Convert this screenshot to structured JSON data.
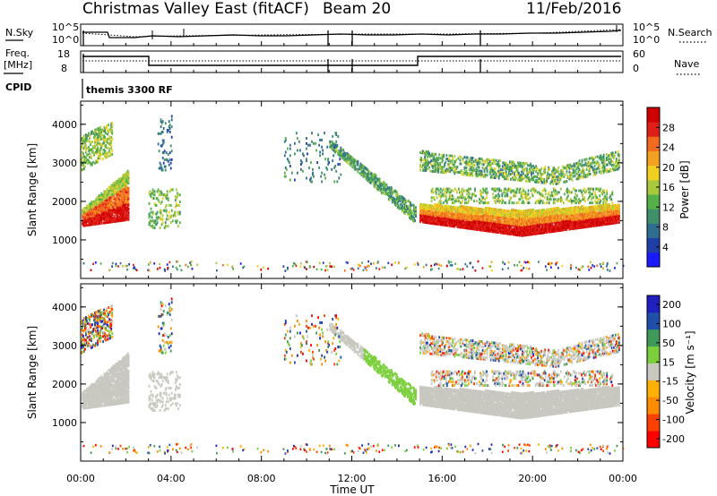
{
  "header": {
    "title": "Christmas Valley East (fitACF)",
    "beam": "Beam 20",
    "date": "11/Feb/2016"
  },
  "side_labels": {
    "nsky": "N.Sky",
    "nsearch": "N.Search",
    "freq": "Freq.",
    "freq_unit": "[MHz]",
    "nave": "Nave",
    "cpid": "CPID",
    "cpid_value": "themis 3300 RF"
  },
  "noise_axis": {
    "left_ticks": [
      "10^5",
      "10^0"
    ],
    "right_ticks": [
      "10^5",
      "10^0"
    ]
  },
  "freq_axis": {
    "left_ticks": [
      "18",
      "8"
    ],
    "right_ticks": [
      "60",
      "0"
    ]
  },
  "colors": {
    "power_scale": [
      "#1a1aff",
      "#1f3fa8",
      "#2f6e8f",
      "#3f8f6a",
      "#55b04a",
      "#a8c93c",
      "#f0d020",
      "#f4a020",
      "#f26a20",
      "#e02018",
      "#d00000"
    ],
    "velocity_scale": [
      "#ff0000",
      "#ff4000",
      "#ff8c00",
      "#ffb000",
      "#c8c8c0",
      "#7ccf3c",
      "#3f9a5a",
      "#1f4fa8",
      "#2020c0"
    ],
    "ground_scatter": "#c8c8c0"
  },
  "chart_data": [
    {
      "type": "heatmap",
      "name": "power",
      "ylabel": "Slant Range [km]",
      "yticks": [
        "1000",
        "2000",
        "3000",
        "4000"
      ],
      "ylim": [
        0,
        4600
      ],
      "xticks": [
        "00:00",
        "04:00",
        "08:00",
        "12:00",
        "16:00",
        "20:00",
        "00:00"
      ],
      "xlim_hours": [
        0,
        24
      ],
      "colorbar_label": "Power [dB]",
      "colorbar_ticks": [
        "4",
        "8",
        "12",
        "16",
        "20",
        "24",
        "28"
      ],
      "colorbar_range": [
        0,
        32
      ]
    },
    {
      "type": "heatmap",
      "name": "velocity",
      "ylabel": "Slant Range [km]",
      "yticks": [
        "1000",
        "2000",
        "3000",
        "4000"
      ],
      "ylim": [
        0,
        4600
      ],
      "xticks": [
        "00:00",
        "04:00",
        "08:00",
        "12:00",
        "16:00",
        "20:00",
        "00:00"
      ],
      "xlim_hours": [
        0,
        24
      ],
      "xlabel": "Time UT",
      "colorbar_label": "Velocity [m s⁻¹]",
      "colorbar_ticks": [
        "200",
        "100",
        "50",
        "15",
        "-15",
        "-50",
        "-100",
        "-200"
      ]
    }
  ]
}
